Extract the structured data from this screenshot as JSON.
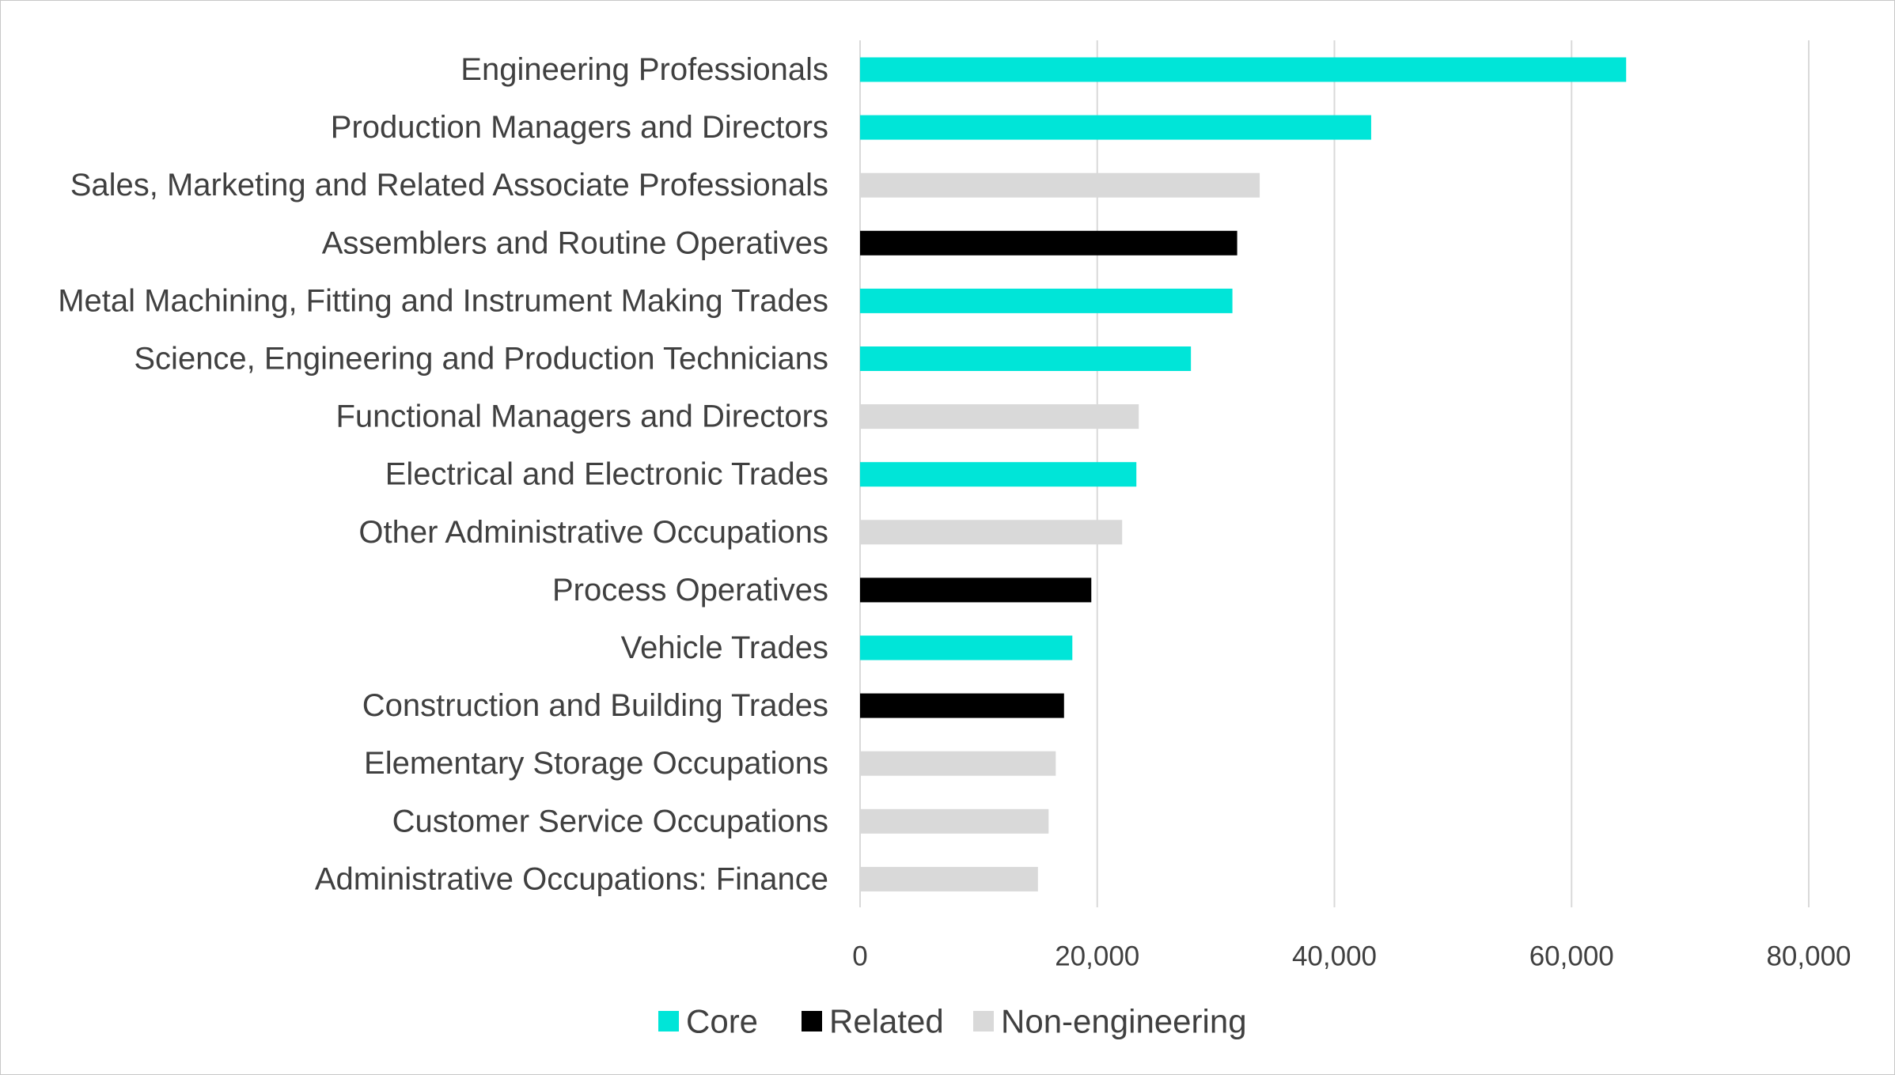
{
  "chart_data": {
    "type": "bar",
    "orientation": "horizontal",
    "title": "",
    "xlabel": "",
    "ylabel": "",
    "xlim": [
      0,
      80000
    ],
    "x_ticks": [
      0,
      20000,
      40000,
      60000,
      80000
    ],
    "x_tick_labels": [
      "0",
      "20,000",
      "40,000",
      "60,000",
      "80,000"
    ],
    "grid": "vertical",
    "legend_position": "bottom",
    "groups": [
      {
        "name": "Core",
        "color": "#00e5d8"
      },
      {
        "name": "Related",
        "color": "#000000"
      },
      {
        "name": "Non-engineering",
        "color": "#d9d9d9"
      }
    ],
    "bars": [
      {
        "category": "Engineering Professionals",
        "value": 64600,
        "group": "Core"
      },
      {
        "category": "Production Managers and Directors",
        "value": 43100,
        "group": "Core"
      },
      {
        "category": "Sales, Marketing and Related Associate Professionals",
        "value": 33700,
        "group": "Non-engineering"
      },
      {
        "category": "Assemblers and Routine Operatives",
        "value": 31800,
        "group": "Related"
      },
      {
        "category": "Metal Machining, Fitting and Instrument Making Trades",
        "value": 31400,
        "group": "Core"
      },
      {
        "category": "Science, Engineering and Production Technicians",
        "value": 27900,
        "group": "Core"
      },
      {
        "category": "Functional Managers and Directors",
        "value": 23500,
        "group": "Non-engineering"
      },
      {
        "category": "Electrical and Electronic Trades",
        "value": 23300,
        "group": "Core"
      },
      {
        "category": "Other Administrative Occupations",
        "value": 22100,
        "group": "Non-engineering"
      },
      {
        "category": "Process Operatives",
        "value": 19500,
        "group": "Related"
      },
      {
        "category": "Vehicle Trades",
        "value": 17900,
        "group": "Core"
      },
      {
        "category": "Construction and Building Trades",
        "value": 17200,
        "group": "Related"
      },
      {
        "category": "Elementary Storage Occupations",
        "value": 16500,
        "group": "Non-engineering"
      },
      {
        "category": "Customer Service Occupations",
        "value": 15900,
        "group": "Non-engineering"
      },
      {
        "category": "Administrative Occupations: Finance",
        "value": 15000,
        "group": "Non-engineering"
      }
    ]
  }
}
